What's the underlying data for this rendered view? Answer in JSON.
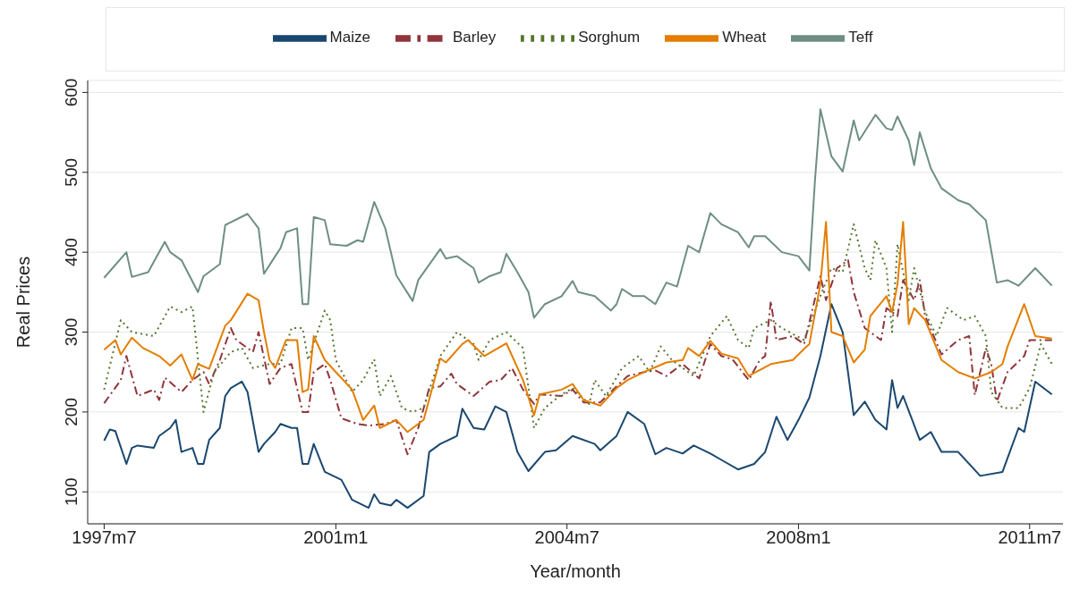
{
  "chart_data": {
    "type": "line",
    "xlabel": "Year/month",
    "ylabel": "Real Prices",
    "ylim": [
      60,
      615
    ],
    "yticks": [
      100,
      200,
      300,
      400,
      500,
      600
    ],
    "xlim": [
      "1997-04",
      "2012-01"
    ],
    "xticks": [
      {
        "value": "1997-07",
        "label": "1997m7"
      },
      {
        "value": "2001-01",
        "label": "2001m1"
      },
      {
        "value": "2004-07",
        "label": "2004m7"
      },
      {
        "value": "2008-01",
        "label": "2008m1"
      },
      {
        "value": "2011-07",
        "label": "2011m7"
      }
    ],
    "grid": "y",
    "legend": "top",
    "marker": "none",
    "series": [
      {
        "name": "Maize",
        "color": "#1a476f",
        "line_style": "solid",
        "x": [
          "1997-07",
          "1997-08",
          "1997-09",
          "1997-11",
          "1997-12",
          "1998-01",
          "1998-04",
          "1998-05",
          "1998-07",
          "1998-08",
          "1998-09",
          "1998-11",
          "1998-12",
          "1999-01",
          "1999-02",
          "1999-04",
          "1999-05",
          "1999-06",
          "1999-08",
          "1999-09",
          "1999-11",
          "1999-12",
          "2000-02",
          "2000-03",
          "2000-05",
          "2000-06",
          "2000-07",
          "2000-08",
          "2000-09",
          "2000-11",
          "2001-02",
          "2001-04",
          "2001-07",
          "2001-08",
          "2001-09",
          "2001-11",
          "2001-12",
          "2002-02",
          "2002-05",
          "2002-06",
          "2002-08",
          "2002-11",
          "2002-12",
          "2003-02",
          "2003-04",
          "2003-06",
          "2003-08",
          "2003-10",
          "2003-12",
          "2004-03",
          "2004-05",
          "2004-08",
          "2004-12",
          "2005-01",
          "2005-04",
          "2005-06",
          "2005-09",
          "2005-11",
          "2006-01",
          "2006-04",
          "2006-06",
          "2006-09",
          "2006-11",
          "2007-02",
          "2007-05",
          "2007-07",
          "2007-09",
          "2007-11",
          "2008-01",
          "2008-03",
          "2008-05",
          "2008-07",
          "2008-09",
          "2008-11",
          "2009-01",
          "2009-03",
          "2009-05",
          "2009-06",
          "2009-07",
          "2009-08",
          "2009-11",
          "2010-01",
          "2010-03",
          "2010-06",
          "2010-10",
          "2011-02",
          "2011-05",
          "2011-06",
          "2011-08",
          "2011-11"
        ],
        "values": [
          164,
          178,
          176,
          135,
          155,
          158,
          155,
          170,
          180,
          190,
          150,
          155,
          135,
          135,
          165,
          180,
          220,
          230,
          238,
          225,
          150,
          160,
          175,
          185,
          180,
          180,
          135,
          135,
          160,
          125,
          115,
          90,
          80,
          97,
          86,
          83,
          90,
          80,
          95,
          150,
          160,
          170,
          204,
          180,
          178,
          207,
          200,
          150,
          126,
          150,
          152,
          170,
          160,
          152,
          170,
          200,
          185,
          147,
          155,
          148,
          158,
          148,
          140,
          128,
          135,
          150,
          194,
          165,
          190,
          218,
          270,
          335,
          300,
          196,
          213,
          190,
          178,
          240,
          205,
          220,
          165,
          175,
          150,
          150,
          120,
          125,
          180,
          175,
          238,
          222
        ]
      },
      {
        "name": "Barley",
        "color": "#90353b",
        "line_style": "dashed",
        "x": [
          "1997-07",
          "1997-10",
          "1997-11",
          "1998-01",
          "1998-04",
          "1998-05",
          "1998-06",
          "1998-09",
          "1998-11",
          "1999-01",
          "1999-02",
          "1999-04",
          "1999-06",
          "1999-07",
          "1999-10",
          "1999-11",
          "2000-01",
          "2000-03",
          "2000-05",
          "2000-07",
          "2000-08",
          "2000-09",
          "2000-11",
          "2000-12",
          "2001-02",
          "2001-05",
          "2001-07",
          "2001-10",
          "2001-12",
          "2002-02",
          "2002-04",
          "2002-06",
          "2002-08",
          "2002-10",
          "2002-11",
          "2003-02",
          "2003-05",
          "2003-07",
          "2003-09",
          "2003-11",
          "2004-01",
          "2004-02",
          "2004-06",
          "2004-08",
          "2004-10",
          "2005-01",
          "2005-04",
          "2005-06",
          "2005-09",
          "2005-11",
          "2006-01",
          "2006-04",
          "2006-07",
          "2006-09",
          "2006-11",
          "2007-01",
          "2007-04",
          "2007-06",
          "2007-07",
          "2007-08",
          "2007-09",
          "2007-12",
          "2008-02",
          "2008-05",
          "2008-06",
          "2008-08",
          "2008-10",
          "2008-11",
          "2009-01",
          "2009-04",
          "2009-05",
          "2009-07",
          "2009-08",
          "2009-10",
          "2009-11",
          "2009-12",
          "2010-03",
          "2010-06",
          "2010-08",
          "2010-09",
          "2010-11",
          "2010-12",
          "2011-01",
          "2011-03",
          "2011-06",
          "2011-07",
          "2011-11"
        ],
        "values": [
          211,
          240,
          270,
          220,
          228,
          215,
          243,
          225,
          240,
          250,
          235,
          265,
          305,
          290,
          275,
          300,
          235,
          255,
          260,
          200,
          200,
          250,
          260,
          240,
          192,
          185,
          183,
          185,
          190,
          147,
          180,
          230,
          232,
          248,
          235,
          220,
          238,
          240,
          255,
          228,
          210,
          222,
          220,
          228,
          212,
          212,
          232,
          245,
          250,
          252,
          245,
          260,
          242,
          285,
          270,
          266,
          240,
          265,
          270,
          339,
          290,
          295,
          285,
          370,
          340,
          380,
          390,
          350,
          305,
          290,
          330,
          320,
          365,
          340,
          365,
          320,
          272,
          290,
          295,
          221,
          280,
          260,
          213,
          250,
          270,
          290,
          290
        ]
      },
      {
        "name": "Sorghum",
        "color": "#55752f",
        "line_style": "dotted",
        "x": [
          "1997-07",
          "1997-10",
          "1997-12",
          "1998-04",
          "1998-07",
          "1998-09",
          "1998-11",
          "1999-01",
          "1999-03",
          "1999-06",
          "1999-08",
          "1999-10",
          "2000-01",
          "2000-03",
          "2000-05",
          "2000-07",
          "2000-08",
          "2000-11",
          "2000-12",
          "2001-01",
          "2001-04",
          "2001-06",
          "2001-08",
          "2001-09",
          "2001-11",
          "2002-01",
          "2002-03",
          "2002-05",
          "2002-08",
          "2002-11",
          "2003-02",
          "2003-03",
          "2003-05",
          "2003-08",
          "2003-11",
          "2004-01",
          "2004-03",
          "2004-06",
          "2004-08",
          "2004-11",
          "2004-12",
          "2005-02",
          "2005-05",
          "2005-08",
          "2005-10",
          "2005-12",
          "2006-02",
          "2006-06",
          "2006-09",
          "2006-12",
          "2007-02",
          "2007-04",
          "2007-05",
          "2007-08",
          "2007-10",
          "2008-02",
          "2008-05",
          "2008-07",
          "2008-09",
          "2008-11",
          "2009-01",
          "2009-02",
          "2009-03",
          "2009-05",
          "2009-06",
          "2009-07",
          "2009-09",
          "2009-10",
          "2009-12",
          "2010-02",
          "2010-04",
          "2010-07",
          "2010-09",
          "2010-11",
          "2010-12",
          "2011-02",
          "2011-05",
          "2011-07",
          "2011-09",
          "2011-11"
        ],
        "values": [
          228,
          315,
          300,
          295,
          332,
          325,
          332,
          200,
          250,
          275,
          280,
          255,
          260,
          260,
          305,
          305,
          265,
          327,
          315,
          265,
          225,
          240,
          266,
          220,
          245,
          205,
          200,
          205,
          270,
          300,
          285,
          265,
          290,
          300,
          280,
          180,
          205,
          222,
          230,
          210,
          240,
          220,
          255,
          270,
          250,
          282,
          265,
          245,
          295,
          320,
          290,
          280,
          305,
          315,
          305,
          290,
          345,
          380,
          375,
          435,
          380,
          365,
          415,
          380,
          300,
          410,
          340,
          380,
          325,
          295,
          330,
          315,
          320,
          295,
          225,
          205,
          205,
          230,
          285,
          260
        ]
      },
      {
        "name": "Wheat",
        "color": "#e37e00",
        "line_style": "solid",
        "x": [
          "1997-07",
          "1997-09",
          "1997-10",
          "1997-12",
          "1998-02",
          "1998-05",
          "1998-07",
          "1998-09",
          "1998-11",
          "1998-12",
          "1999-02",
          "1999-05",
          "1999-06",
          "1999-09",
          "1999-11",
          "1999-12",
          "2000-01",
          "2000-02",
          "2000-04",
          "2000-06",
          "2000-07",
          "2000-08",
          "2000-09",
          "2000-11",
          "2001-01",
          "2001-04",
          "2001-06",
          "2001-08",
          "2001-09",
          "2001-12",
          "2002-02",
          "2002-05",
          "2002-08",
          "2002-09",
          "2002-12",
          "2003-01",
          "2003-04",
          "2003-08",
          "2003-11",
          "2004-01",
          "2004-02",
          "2004-06",
          "2004-08",
          "2004-10",
          "2005-01",
          "2005-04",
          "2005-06",
          "2005-09",
          "2006-01",
          "2006-04",
          "2006-05",
          "2006-07",
          "2006-09",
          "2006-11",
          "2007-02",
          "2007-04",
          "2007-08",
          "2007-12",
          "2008-02",
          "2008-03",
          "2008-05",
          "2008-06",
          "2008-07",
          "2008-09",
          "2008-11",
          "2009-01",
          "2009-02",
          "2009-05",
          "2009-06",
          "2009-07",
          "2009-08",
          "2009-09",
          "2009-10",
          "2009-12",
          "2010-03",
          "2010-06",
          "2010-09",
          "2010-12",
          "2011-02",
          "2011-03",
          "2011-06",
          "2011-08",
          "2011-11"
        ],
        "values": [
          278,
          290,
          272,
          293,
          280,
          270,
          258,
          272,
          240,
          260,
          254,
          308,
          315,
          348,
          340,
          300,
          265,
          255,
          290,
          290,
          225,
          228,
          295,
          265,
          250,
          228,
          190,
          208,
          180,
          190,
          175,
          190,
          267,
          262,
          285,
          290,
          270,
          286,
          240,
          196,
          222,
          228,
          235,
          215,
          208,
          230,
          240,
          250,
          262,
          265,
          280,
          270,
          289,
          273,
          267,
          245,
          260,
          265,
          279,
          285,
          360,
          438,
          300,
          295,
          262,
          278,
          320,
          345,
          325,
          360,
          438,
          310,
          330,
          315,
          265,
          250,
          242,
          250,
          260,
          282,
          335,
          295,
          292
        ]
      },
      {
        "name": "Teff",
        "color": "#6e8e84",
        "line_style": "solid",
        "x": [
          "1997-07",
          "1997-11",
          "1997-12",
          "1998-03",
          "1998-06",
          "1998-07",
          "1998-09",
          "1998-12",
          "1999-01",
          "1999-04",
          "1999-05",
          "1999-09",
          "1999-11",
          "1999-12",
          "2000-02",
          "2000-03",
          "2000-04",
          "2000-06",
          "2000-07",
          "2000-08",
          "2000-09",
          "2000-11",
          "2000-12",
          "2001-03",
          "2001-05",
          "2001-06",
          "2001-08",
          "2001-10",
          "2001-12",
          "2002-03",
          "2002-04",
          "2002-08",
          "2002-09",
          "2002-11",
          "2003-02",
          "2003-03",
          "2003-05",
          "2003-07",
          "2003-08",
          "2003-10",
          "2003-12",
          "2004-01",
          "2004-03",
          "2004-06",
          "2004-08",
          "2004-09",
          "2004-12",
          "2005-03",
          "2005-04",
          "2005-05",
          "2005-07",
          "2005-09",
          "2005-11",
          "2006-01",
          "2006-03",
          "2006-05",
          "2006-07",
          "2006-09",
          "2006-11",
          "2007-02",
          "2007-04",
          "2007-05",
          "2007-07",
          "2007-10",
          "2008-01",
          "2008-03",
          "2008-04",
          "2008-05",
          "2008-07",
          "2008-09",
          "2008-11",
          "2008-12",
          "2009-03",
          "2009-05",
          "2009-06",
          "2009-07",
          "2009-09",
          "2009-10",
          "2009-11",
          "2010-01",
          "2010-03",
          "2010-06",
          "2010-08",
          "2010-11",
          "2011-01",
          "2011-03",
          "2011-05",
          "2011-08",
          "2011-11"
        ],
        "values": [
          368,
          400,
          369,
          375,
          413,
          400,
          390,
          350,
          370,
          385,
          434,
          448,
          430,
          373,
          395,
          405,
          425,
          430,
          335,
          335,
          444,
          440,
          410,
          408,
          415,
          413,
          463,
          430,
          371,
          339,
          365,
          404,
          392,
          395,
          380,
          362,
          370,
          375,
          398,
          375,
          350,
          318,
          335,
          345,
          364,
          350,
          345,
          327,
          335,
          354,
          345,
          345,
          335,
          362,
          357,
          408,
          400,
          449,
          435,
          425,
          406,
          420,
          420,
          400,
          395,
          377,
          490,
          579,
          520,
          501,
          565,
          540,
          572,
          555,
          553,
          570,
          540,
          509,
          550,
          505,
          480,
          465,
          460,
          440,
          362,
          365,
          358,
          380,
          358
        ]
      }
    ]
  }
}
